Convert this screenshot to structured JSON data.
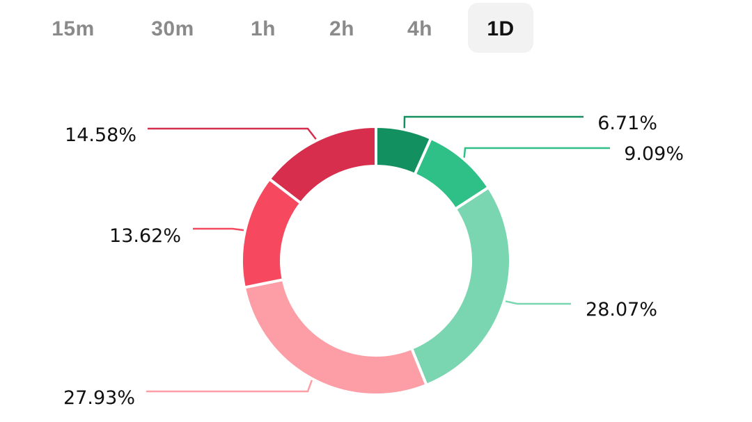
{
  "timeframe_tabs": [
    {
      "label": "15m",
      "active": false
    },
    {
      "label": "30m",
      "active": false
    },
    {
      "label": "1h",
      "active": false
    },
    {
      "label": "2h",
      "active": false
    },
    {
      "label": "4h",
      "active": false
    },
    {
      "label": "1D",
      "active": true
    }
  ],
  "chart_data": {
    "type": "pie",
    "donut": true,
    "direction": "clockwise, starting at 12 o'clock",
    "values": [
      6.71,
      9.09,
      28.07,
      27.93,
      13.62,
      14.58
    ],
    "labels": [
      "6.71%",
      "9.09%",
      "28.07%",
      "27.93%",
      "13.62%",
      "14.58%"
    ],
    "colors": [
      "#12905f",
      "#2ec086",
      "#7ad6b0",
      "#fd9ea6",
      "#f6485f",
      "#d62e4c"
    ],
    "legend": "none"
  }
}
